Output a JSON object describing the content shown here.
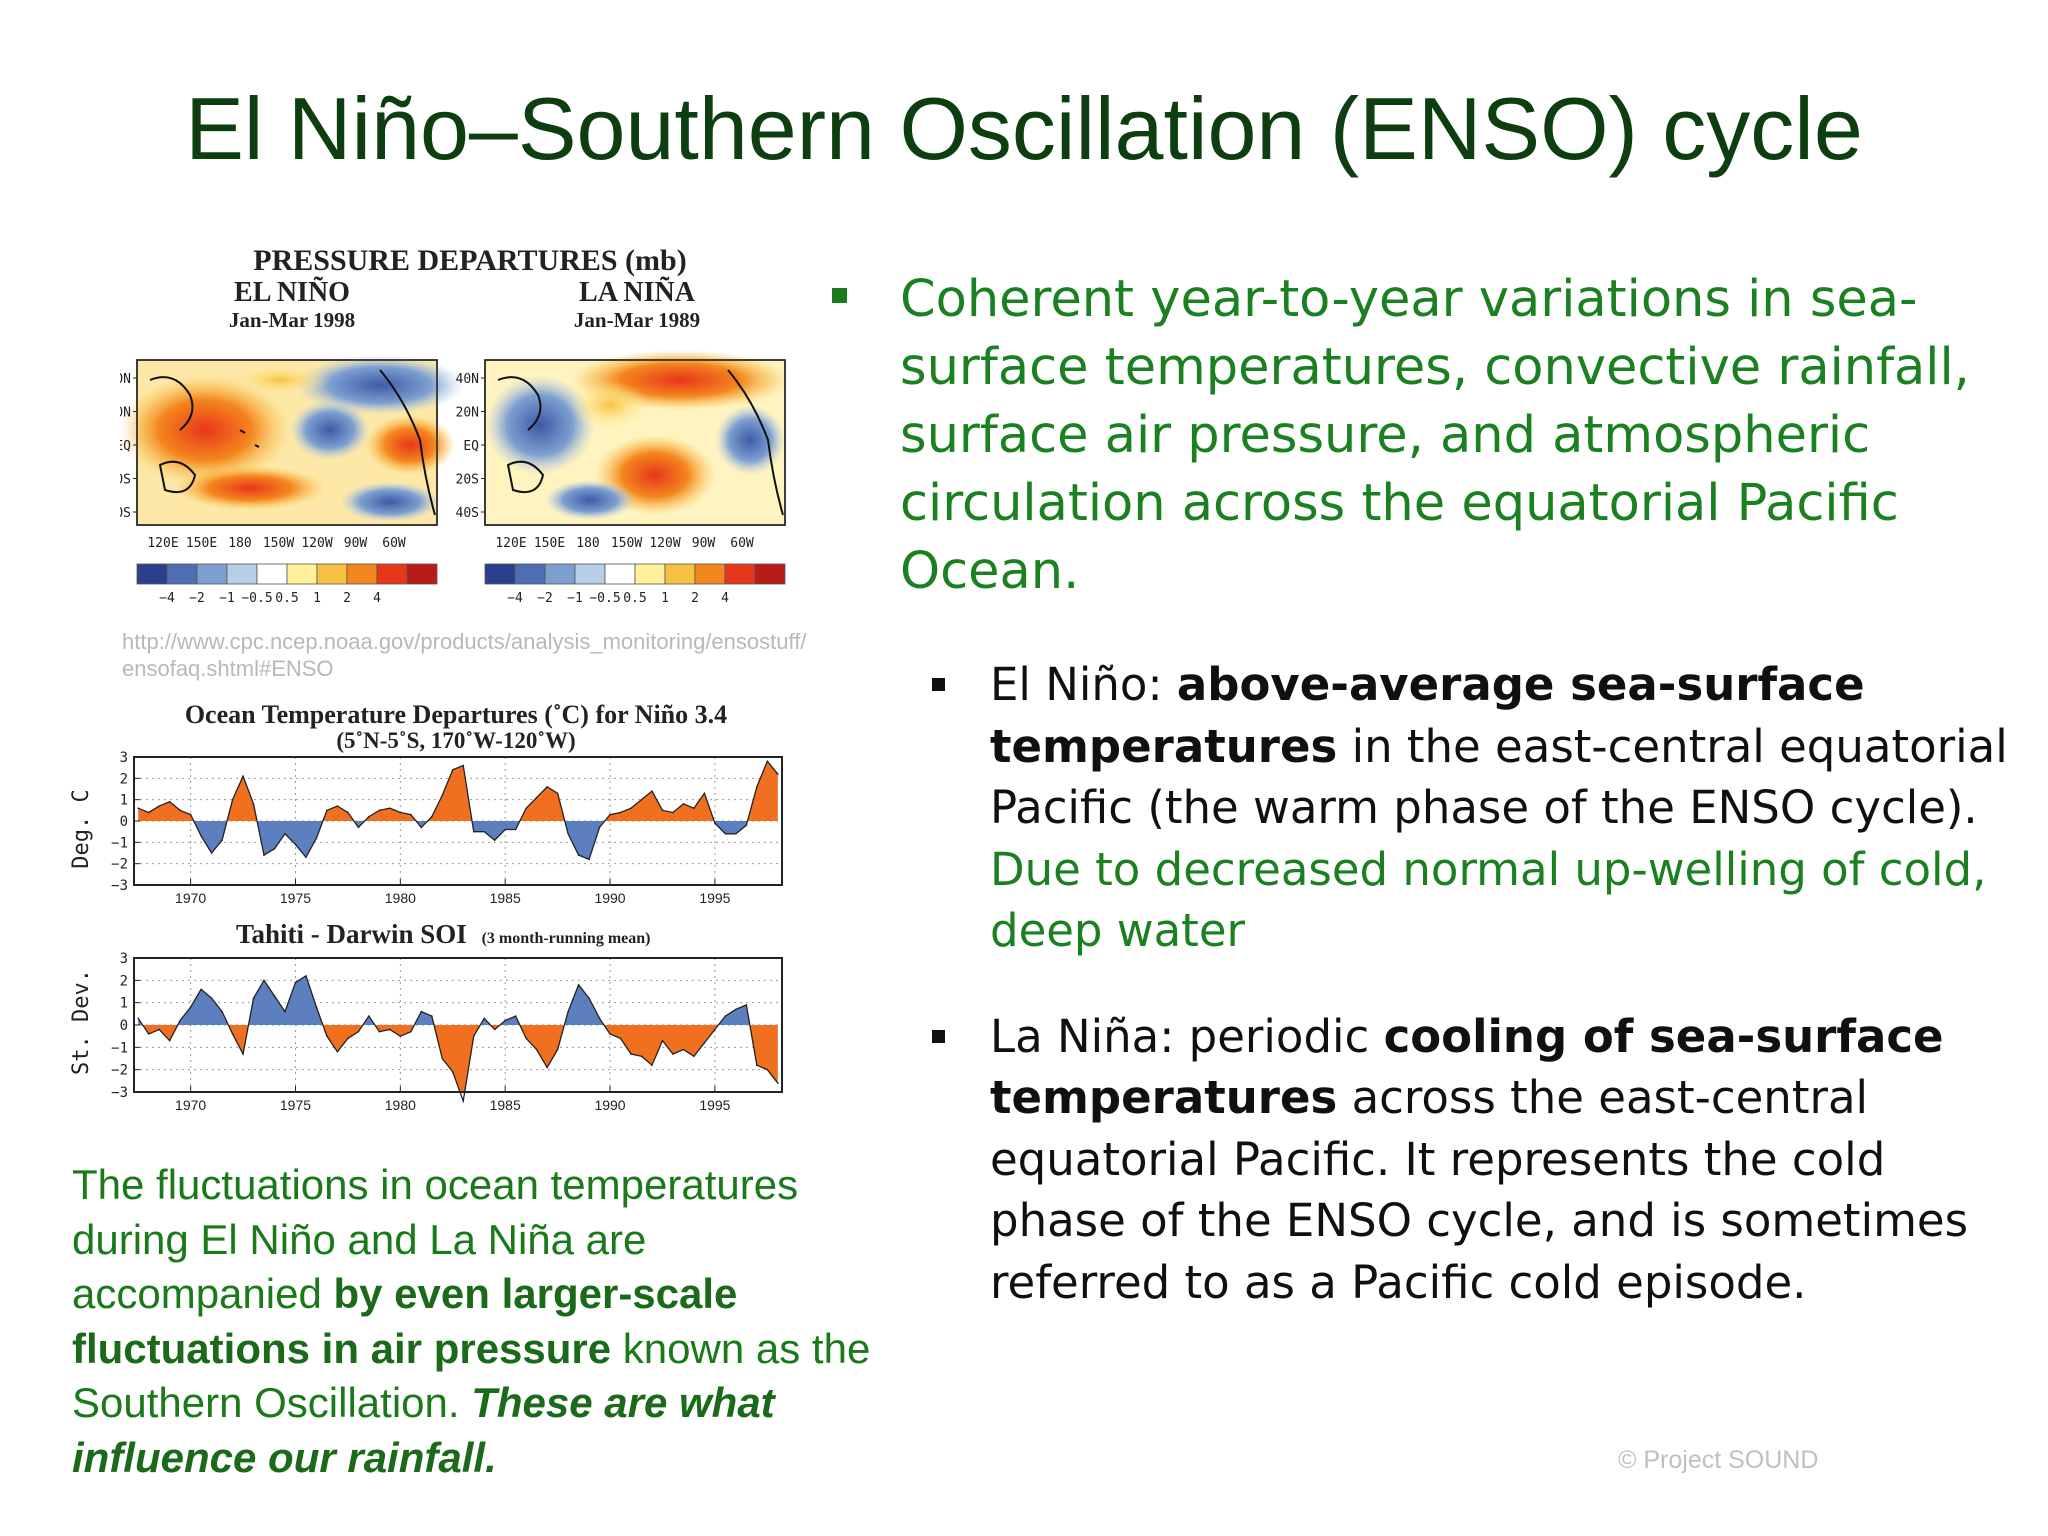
{
  "title": "El Niño–Southern Oscillation (ENSO) cycle",
  "pressure_figure": {
    "heading": "PRESSURE DEPARTURES (mb)",
    "left_name": "EL NIÑO",
    "left_date": "Jan-Mar 1998",
    "right_name": "LA NIÑA",
    "right_date": "Jan-Mar 1989",
    "lat_labels": [
      "40N",
      "20N",
      "EQ",
      "20S",
      "40S"
    ],
    "lon_labels": [
      "120E",
      "150E",
      "180",
      "150W",
      "120W",
      "90W",
      "60W"
    ],
    "scale_labels": [
      "−4",
      "−2",
      "−1",
      "−0.5",
      "0.5",
      "1",
      "2",
      "4"
    ],
    "scale_colors": [
      "#2c3f8f",
      "#4e6db5",
      "#7d9fd0",
      "#b6cfe6",
      "#ffffff",
      "#fff099",
      "#f8c040",
      "#f4861e",
      "#e8361b",
      "#b81c18"
    ]
  },
  "source_url": "http://www.cpc.ncep.noaa.gov/products/analysis_monitoring/ensostuff/ensofaq.shtml#ENSO",
  "chart_data": [
    {
      "type": "area",
      "title": "Ocean Temperature Departures (˚C) for Niño 3.4",
      "subtitle": "(5˚N-5˚S, 170˚W-120˚W)",
      "ylabel": "Deg. C",
      "ylim": [
        -3,
        3
      ],
      "yticks": [
        "3",
        "2",
        "1",
        "0",
        "−1",
        "−2",
        "−3"
      ],
      "xticks": [
        "1970",
        "1975",
        "1980",
        "1985",
        "1990",
        "1995"
      ],
      "positive_color": "#f07020",
      "negative_color": "#5c7fbf",
      "x": [
        1967.5,
        1968,
        1968.5,
        1969,
        1969.5,
        1970,
        1970.5,
        1971,
        1971.5,
        1972,
        1972.5,
        1973,
        1973.5,
        1974,
        1974.5,
        1975,
        1975.5,
        1976,
        1976.5,
        1977,
        1977.5,
        1978,
        1978.5,
        1979,
        1979.5,
        1980,
        1980.5,
        1981,
        1981.5,
        1982,
        1982.5,
        1983,
        1983.5,
        1984,
        1984.5,
        1985,
        1985.5,
        1986,
        1986.5,
        1987,
        1987.5,
        1988,
        1988.5,
        1989,
        1989.5,
        1990,
        1990.5,
        1991,
        1991.5,
        1992,
        1992.5,
        1993,
        1993.5,
        1994,
        1994.5,
        1995,
        1995.5,
        1996,
        1996.5,
        1997,
        1997.5,
        1998
      ],
      "values": [
        0.6,
        0.4,
        0.7,
        0.9,
        0.5,
        0.3,
        -0.7,
        -1.5,
        -0.9,
        1.0,
        2.1,
        0.8,
        -1.6,
        -1.3,
        -0.6,
        -1.1,
        -1.7,
        -0.8,
        0.5,
        0.7,
        0.4,
        -0.3,
        0.2,
        0.5,
        0.6,
        0.4,
        0.3,
        -0.3,
        0.2,
        1.2,
        2.4,
        2.6,
        -0.5,
        -0.5,
        -0.9,
        -0.4,
        -0.4,
        0.6,
        1.1,
        1.6,
        1.3,
        -0.6,
        -1.6,
        -1.8,
        -0.3,
        0.3,
        0.4,
        0.6,
        1.0,
        1.4,
        0.5,
        0.4,
        0.8,
        0.6,
        1.3,
        -0.1,
        -0.6,
        -0.6,
        -0.2,
        1.6,
        2.8,
        2.2
      ]
    },
    {
      "type": "area",
      "title": "Tahiti - Darwin SOI",
      "subtitle": "(3 month-running mean)",
      "ylabel": "St. Dev.",
      "ylim": [
        -3,
        3
      ],
      "yticks": [
        "3",
        "2",
        "1",
        "0",
        "−1",
        "−2",
        "−3"
      ],
      "xticks": [
        "1970",
        "1975",
        "1980",
        "1985",
        "1990",
        "1995"
      ],
      "positive_color": "#5c7fbf",
      "negative_color": "#f07020",
      "x": [
        1967.5,
        1968,
        1968.5,
        1969,
        1969.5,
        1970,
        1970.5,
        1971,
        1971.5,
        1972,
        1972.5,
        1973,
        1973.5,
        1974,
        1974.5,
        1975,
        1975.5,
        1976,
        1976.5,
        1977,
        1977.5,
        1978,
        1978.5,
        1979,
        1979.5,
        1980,
        1980.5,
        1981,
        1981.5,
        1982,
        1982.5,
        1983,
        1983.5,
        1984,
        1984.5,
        1985,
        1985.5,
        1986,
        1986.5,
        1987,
        1987.5,
        1988,
        1988.5,
        1989,
        1989.5,
        1990,
        1990.5,
        1991,
        1991.5,
        1992,
        1992.5,
        1993,
        1993.5,
        1994,
        1994.5,
        1995,
        1995.5,
        1996,
        1996.5,
        1997,
        1997.5,
        1998
      ],
      "values": [
        0.3,
        -0.4,
        -0.2,
        -0.7,
        0.2,
        0.8,
        1.6,
        1.2,
        0.6,
        -0.4,
        -1.3,
        1.2,
        2.0,
        1.3,
        0.6,
        1.9,
        2.2,
        0.8,
        -0.5,
        -1.2,
        -0.6,
        -0.3,
        0.4,
        -0.3,
        -0.2,
        -0.5,
        -0.3,
        0.6,
        0.4,
        -1.5,
        -2.1,
        -3.4,
        -0.5,
        0.3,
        -0.2,
        0.2,
        0.4,
        -0.6,
        -1.1,
        -1.9,
        -1.1,
        0.6,
        1.8,
        1.2,
        0.3,
        -0.4,
        -0.6,
        -1.3,
        -1.4,
        -1.8,
        -0.7,
        -1.3,
        -1.1,
        -1.4,
        -0.8,
        -0.2,
        0.4,
        0.7,
        0.9,
        -1.8,
        -2.0,
        -2.6
      ]
    }
  ],
  "caption": {
    "part1": "The fluctuations in ocean temperatures during El Niño and La Niña are accompanied ",
    "bold": "by even larger-scale fluctuations in air pressure",
    "part2": " known as the Southern Oscillation.  ",
    "bold_italic": "These are what influence our rainfall."
  },
  "bullets": {
    "main": "Coherent year-to-year variations in sea-surface temperatures, convective rainfall, surface air pressure, and atmospheric circulation across the equatorial Pacific Ocean.",
    "elnino": {
      "label": "El Niño: ",
      "bold": "above-average sea-surface temperatures",
      "text": " in the east-central equatorial Pacific (the warm phase of the ENSO cycle). ",
      "green": "Due to decreased normal up-welling of cold, deep water"
    },
    "lanina": {
      "label": "La Niña: periodic ",
      "bold": "cooling of sea-surface temperatures",
      "text": " across the east-central equatorial Pacific. It represents the cold phase of the ENSO cycle, and is sometimes referred to as a Pacific cold episode."
    }
  },
  "footer": "© Project  SOUND"
}
